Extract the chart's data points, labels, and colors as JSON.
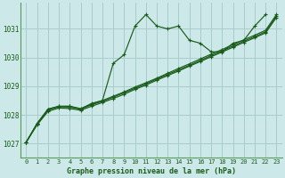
{
  "title": "Graphe pression niveau de la mer (hPa)",
  "bg_color": "#cce8e8",
  "grid_color": "#aacccc",
  "line_color": "#1a5c1a",
  "spine_color": "#5a9a5a",
  "xlim": [
    -0.5,
    23.5
  ],
  "ylim": [
    1026.5,
    1031.9
  ],
  "yticks": [
    1027,
    1028,
    1029,
    1030,
    1031
  ],
  "xticks": [
    0,
    1,
    2,
    3,
    4,
    5,
    6,
    7,
    8,
    9,
    10,
    11,
    12,
    13,
    14,
    15,
    16,
    17,
    18,
    19,
    20,
    21,
    22,
    23
  ],
  "y_zigzag": [
    1027.05,
    1027.7,
    1028.2,
    1028.3,
    1028.3,
    1028.2,
    1028.4,
    1028.5,
    1029.8,
    1030.1,
    1031.1,
    1031.5,
    1031.1,
    1031.0,
    1031.1,
    1030.6,
    1030.5,
    1030.2,
    1030.2,
    1030.5,
    1030.6,
    1031.1,
    1031.5,
    null
  ],
  "y_line1": [
    1027.05,
    1027.7,
    1028.2,
    1028.3,
    1028.3,
    1028.22,
    1028.38,
    1028.5,
    1028.65,
    1028.8,
    1028.97,
    1029.12,
    1029.28,
    1029.45,
    1029.62,
    1029.78,
    1029.95,
    1030.12,
    1030.28,
    1030.45,
    1030.62,
    1030.78,
    1030.95,
    1031.5
  ],
  "y_line2": [
    1027.05,
    1027.68,
    1028.17,
    1028.28,
    1028.27,
    1028.2,
    1028.35,
    1028.47,
    1028.62,
    1028.77,
    1028.93,
    1029.08,
    1029.25,
    1029.41,
    1029.57,
    1029.73,
    1029.9,
    1030.07,
    1030.23,
    1030.4,
    1030.57,
    1030.73,
    1030.9,
    1031.45
  ],
  "y_line3": [
    1027.05,
    1027.65,
    1028.12,
    1028.24,
    1028.22,
    1028.16,
    1028.3,
    1028.43,
    1028.57,
    1028.72,
    1028.89,
    1029.04,
    1029.21,
    1029.37,
    1029.53,
    1029.7,
    1029.86,
    1030.03,
    1030.19,
    1030.36,
    1030.53,
    1030.69,
    1030.86,
    1031.4
  ]
}
